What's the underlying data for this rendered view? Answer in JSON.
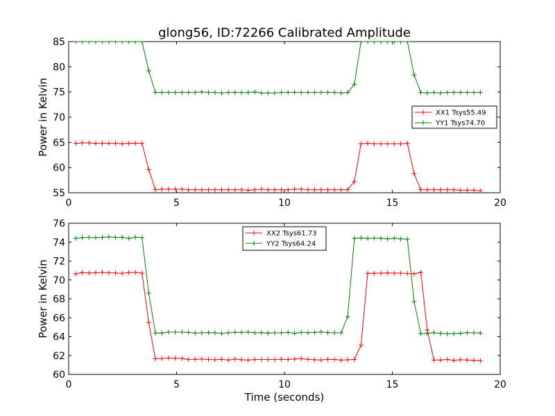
{
  "figure": {
    "title": "glong56, ID:72266 Calibrated Amplitude",
    "xlabel": "Time (seconds)"
  },
  "chart_data": [
    {
      "type": "line",
      "title": "glong56, ID:72266 Calibrated Amplitude",
      "xlabel": "",
      "ylabel": "Power in Kelvin",
      "xlim": [
        0,
        20
      ],
      "ylim": [
        55,
        85
      ],
      "xticks": [
        "0",
        "5",
        "10",
        "15",
        "20"
      ],
      "yticks": [
        "55",
        "60",
        "65",
        "70",
        "75",
        "80",
        "85"
      ],
      "grid": false,
      "legend_position": "center-right",
      "x": [
        0.33,
        0.63,
        0.94,
        1.25,
        1.56,
        1.86,
        2.17,
        2.48,
        2.79,
        3.09,
        3.4,
        3.71,
        4.02,
        4.32,
        4.63,
        4.94,
        5.25,
        5.55,
        5.86,
        6.17,
        6.48,
        6.78,
        7.09,
        7.4,
        7.71,
        8.01,
        8.32,
        8.63,
        8.94,
        9.24,
        9.55,
        9.86,
        10.17,
        10.47,
        10.78,
        11.09,
        11.4,
        11.7,
        12.01,
        12.32,
        12.63,
        12.93,
        13.24,
        13.55,
        13.86,
        14.16,
        14.47,
        14.78,
        15.09,
        15.39,
        15.7,
        16.01,
        16.32,
        16.62,
        16.93,
        17.24,
        17.55,
        17.85,
        18.16,
        18.47,
        18.78,
        19.08
      ],
      "series": [
        {
          "name": "XX1 Tsys55.49",
          "color": "#ff0000",
          "values": [
            64.8,
            64.9,
            64.9,
            64.8,
            64.8,
            64.8,
            64.8,
            64.7,
            64.8,
            64.8,
            64.8,
            59.6,
            55.6,
            55.7,
            55.7,
            55.7,
            55.7,
            55.6,
            55.6,
            55.6,
            55.6,
            55.6,
            55.6,
            55.6,
            55.6,
            55.6,
            55.5,
            55.6,
            55.7,
            55.6,
            55.6,
            55.6,
            55.6,
            55.7,
            55.7,
            55.6,
            55.6,
            55.6,
            55.6,
            55.6,
            55.6,
            55.6,
            57.2,
            64.7,
            64.8,
            64.7,
            64.7,
            64.7,
            64.7,
            64.7,
            64.8,
            58.8,
            55.6,
            55.6,
            55.6,
            55.6,
            55.6,
            55.6,
            55.5,
            55.5,
            55.5,
            55.4
          ]
        },
        {
          "name": "YY1 Tsys74.70",
          "color": "#008000",
          "values": [
            85.0,
            85.0,
            85.0,
            85.0,
            85.0,
            85.0,
            85.0,
            85.0,
            85.0,
            85.0,
            85.0,
            79.2,
            74.9,
            74.9,
            74.9,
            74.9,
            74.9,
            74.9,
            74.9,
            75.0,
            74.9,
            74.9,
            74.8,
            74.9,
            74.9,
            74.9,
            74.9,
            75.0,
            74.8,
            74.8,
            74.8,
            74.9,
            74.9,
            74.9,
            74.9,
            74.9,
            74.9,
            74.9,
            74.9,
            74.9,
            74.8,
            74.9,
            76.5,
            85.0,
            85.0,
            85.0,
            85.0,
            85.0,
            85.0,
            85.0,
            85.0,
            78.4,
            74.9,
            74.8,
            74.9,
            74.8,
            74.9,
            74.9,
            74.9,
            74.9,
            74.9,
            74.9
          ]
        }
      ]
    },
    {
      "type": "line",
      "title": "",
      "xlabel": "Time (seconds)",
      "ylabel": "Power in Kelvin",
      "xlim": [
        0,
        20
      ],
      "ylim": [
        60,
        76
      ],
      "xticks": [
        "0",
        "5",
        "10",
        "15",
        "20"
      ],
      "yticks": [
        "60",
        "62",
        "64",
        "66",
        "68",
        "70",
        "72",
        "74",
        "76"
      ],
      "grid": false,
      "legend_position": "top-center",
      "x": [
        0.33,
        0.63,
        0.94,
        1.25,
        1.56,
        1.86,
        2.17,
        2.48,
        2.79,
        3.09,
        3.4,
        3.71,
        4.02,
        4.32,
        4.63,
        4.94,
        5.25,
        5.55,
        5.86,
        6.17,
        6.48,
        6.78,
        7.09,
        7.4,
        7.71,
        8.01,
        8.32,
        8.63,
        8.94,
        9.24,
        9.55,
        9.86,
        10.17,
        10.47,
        10.78,
        11.09,
        11.4,
        11.7,
        12.01,
        12.32,
        12.63,
        12.93,
        13.24,
        13.55,
        13.86,
        14.16,
        14.47,
        14.78,
        15.09,
        15.39,
        15.7,
        16.01,
        16.32,
        16.62,
        16.93,
        17.24,
        17.55,
        17.85,
        18.16,
        18.47,
        18.78,
        19.08
      ],
      "series": [
        {
          "name": "XX2 Tsys61.73",
          "color": "#ff0000",
          "values": [
            70.65,
            70.78,
            70.74,
            70.76,
            70.8,
            70.76,
            70.74,
            70.7,
            70.78,
            70.8,
            70.72,
            65.5,
            61.65,
            61.69,
            61.73,
            61.71,
            61.69,
            61.58,
            61.6,
            61.62,
            61.58,
            61.55,
            61.6,
            61.52,
            61.62,
            61.55,
            61.51,
            61.57,
            61.58,
            61.58,
            61.58,
            61.6,
            61.58,
            61.62,
            61.67,
            61.6,
            61.55,
            61.52,
            61.6,
            61.58,
            61.51,
            61.55,
            61.58,
            63.1,
            70.71,
            70.7,
            70.72,
            70.74,
            70.72,
            70.72,
            70.68,
            70.65,
            70.8,
            64.7,
            61.52,
            61.52,
            61.58,
            61.49,
            61.55,
            61.52,
            61.49,
            61.45
          ]
        },
        {
          "name": "YY2 Tsys64.24",
          "color": "#008000",
          "values": [
            74.4,
            74.48,
            74.5,
            74.48,
            74.5,
            74.55,
            74.5,
            74.52,
            74.4,
            74.52,
            74.48,
            68.6,
            64.38,
            64.38,
            64.48,
            64.48,
            64.48,
            64.45,
            64.38,
            64.4,
            64.42,
            64.4,
            64.35,
            64.4,
            64.45,
            64.45,
            64.48,
            64.4,
            64.42,
            64.38,
            64.4,
            64.4,
            64.45,
            64.35,
            64.45,
            64.42,
            64.45,
            64.5,
            64.42,
            64.4,
            64.4,
            66.1,
            74.4,
            74.45,
            74.4,
            74.42,
            74.4,
            74.35,
            74.42,
            74.35,
            74.3,
            67.7,
            64.32,
            64.35,
            64.42,
            64.35,
            64.3,
            64.32,
            64.35,
            64.42,
            64.4,
            64.38
          ]
        }
      ]
    }
  ]
}
